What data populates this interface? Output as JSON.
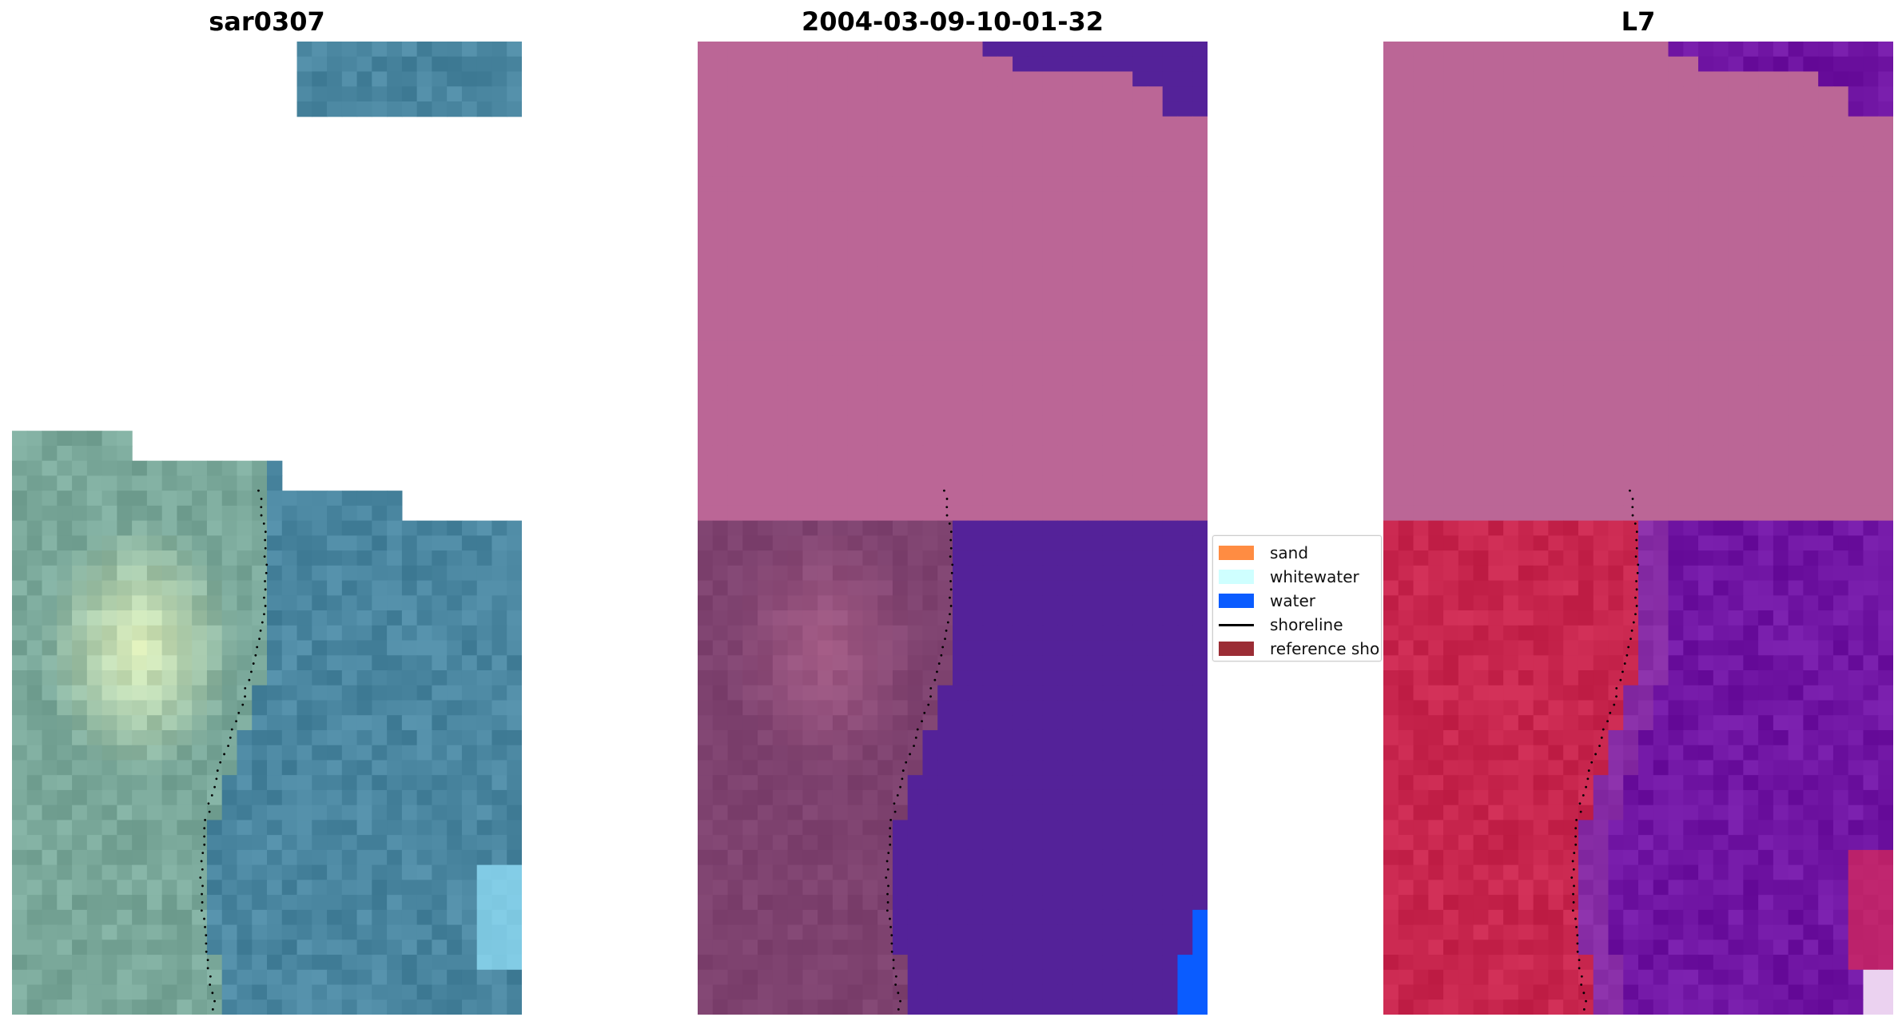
{
  "panels": [
    {
      "title": "sar0307",
      "palette": "rgb"
    },
    {
      "title": "2004-03-09-10-01-32",
      "palette": "class"
    },
    {
      "title": "L7",
      "palette": "mndwi"
    }
  ],
  "legend": {
    "items": [
      {
        "label": "sand",
        "kind": "patch",
        "color": "#ff8c42"
      },
      {
        "label": "whitewater",
        "kind": "patch",
        "color": "#cfffff"
      },
      {
        "label": "water",
        "kind": "patch",
        "color": "#0a5cff"
      },
      {
        "label": "shoreline",
        "kind": "line",
        "color": "#000000"
      },
      {
        "label": "reference shoreline",
        "kind": "patch",
        "color": "#9b2d35"
      }
    ]
  },
  "colors": {
    "rgb_land": "#7aa89a",
    "rgb_water": "#4a86a0",
    "rgb_bright": "#f4ffc4",
    "class_cloud": "#bb6696",
    "class_land": "#7e426f",
    "class_water": "#542299",
    "class_water_pixel": "#0a5cff",
    "mndwi_cloud": "#bb6696",
    "mndwi_land": "#c8264e",
    "mndwi_water": "#7015a3",
    "shoreline_dot": "#000000"
  }
}
